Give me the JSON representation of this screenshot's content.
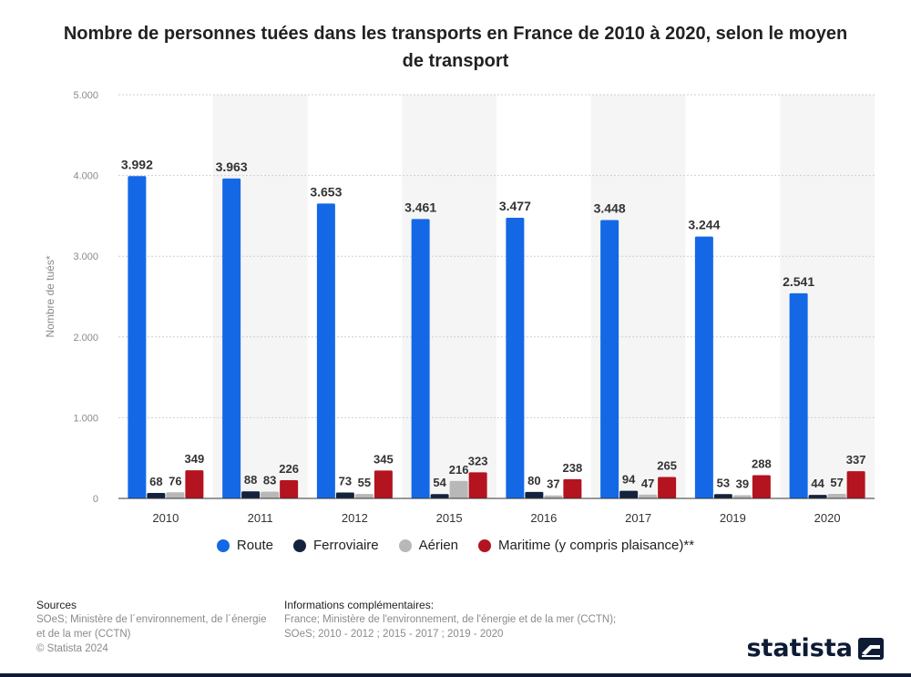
{
  "title": "Nombre de personnes tuées dans les transports en France de 2010 à 2020, selon le moyen de transport",
  "chart_data": {
    "type": "bar",
    "categories": [
      "2010",
      "2011",
      "2012",
      "2015",
      "2016",
      "2017",
      "2019",
      "2020"
    ],
    "series": [
      {
        "name": "Route",
        "color": "#1468e6",
        "values": [
          3992,
          3963,
          3653,
          3461,
          3477,
          3448,
          3244,
          2541
        ],
        "labels": [
          "3.992",
          "3.963",
          "3.653",
          "3.461",
          "3.477",
          "3.448",
          "3.244",
          "2.541"
        ]
      },
      {
        "name": "Ferroviaire",
        "color": "#14233d",
        "values": [
          68,
          88,
          73,
          54,
          80,
          94,
          53,
          44
        ],
        "labels": [
          "68",
          "88",
          "73",
          "54",
          "80",
          "94",
          "53",
          "44"
        ]
      },
      {
        "name": "Aérien",
        "color": "#b8b8b8",
        "values": [
          76,
          83,
          55,
          216,
          37,
          47,
          39,
          57
        ],
        "labels": [
          "76",
          "83",
          "55",
          "216",
          "37",
          "47",
          "39",
          "57"
        ]
      },
      {
        "name": "Maritime (y compris plaisance)**",
        "color": "#b3141f",
        "values": [
          349,
          226,
          345,
          323,
          238,
          265,
          288,
          337
        ],
        "labels": [
          "349",
          "226",
          "345",
          "323",
          "238",
          "265",
          "288",
          "337"
        ]
      }
    ],
    "ylabel": "Nombre de tués*",
    "xlabel": "",
    "ylim": [
      0,
      5000
    ],
    "yticks": [
      0,
      1000,
      2000,
      3000,
      4000,
      5000
    ],
    "ytick_labels": [
      "0",
      "1.000",
      "2.000",
      "3.000",
      "4.000",
      "5.000"
    ],
    "grid": true,
    "legend_position": "bottom"
  },
  "footer": {
    "sources_heading": "Sources",
    "sources_lines": [
      "SOeS; Ministère de l´environnement, de l´énergie",
      "et de la mer (CCTN)",
      "© Statista 2024"
    ],
    "info_heading": "Informations complémentaires:",
    "info_lines": [
      "France; Ministère de l'environnement, de l'énergie et de la mer (CCTN);",
      "SOeS; 2010 - 2012 ; 2015 - 2017 ; 2019 - 2020"
    ]
  },
  "brand": {
    "name": "statista"
  }
}
